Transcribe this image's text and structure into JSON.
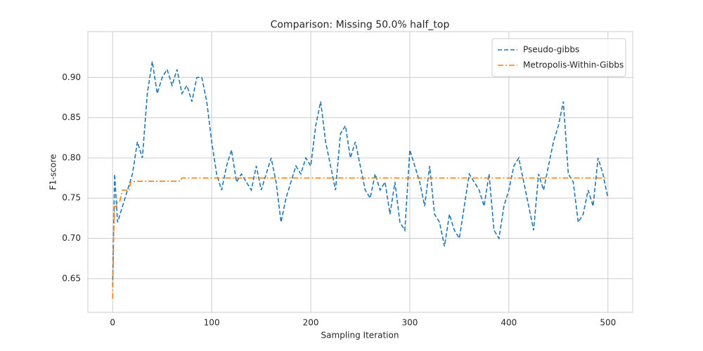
{
  "chart_data": {
    "type": "line",
    "title": "Comparison: Missing 50.0% half_top",
    "x_label": "Sampling Iteration",
    "y_label": "F1-score",
    "xlim": [
      -25,
      525
    ],
    "ylim": [
      0.608,
      0.957
    ],
    "xticks": [
      0,
      100,
      200,
      300,
      400,
      500
    ],
    "yticks": [
      0.65,
      {
        "value": 0.7,
        "label": "0.70"
      },
      0.75,
      {
        "value": 0.8,
        "label": "0.80"
      },
      0.85,
      {
        "value": 0.9,
        "label": "0.90"
      }
    ],
    "grid": true,
    "legend": "upper right",
    "series": [
      {
        "name": "Pseudo-gibbs",
        "color": "#1f77b4",
        "dash": "6,3",
        "x": [
          0,
          2,
          5,
          10,
          15,
          20,
          25,
          30,
          35,
          40,
          45,
          50,
          55,
          60,
          65,
          70,
          75,
          80,
          85,
          90,
          95,
          100,
          105,
          110,
          115,
          120,
          125,
          130,
          135,
          140,
          145,
          150,
          155,
          160,
          165,
          170,
          175,
          180,
          185,
          190,
          195,
          200,
          205,
          210,
          215,
          220,
          225,
          230,
          235,
          240,
          245,
          250,
          255,
          260,
          265,
          270,
          275,
          280,
          285,
          290,
          295,
          300,
          305,
          310,
          315,
          320,
          325,
          330,
          335,
          340,
          345,
          350,
          355,
          360,
          365,
          370,
          375,
          380,
          385,
          390,
          395,
          400,
          405,
          410,
          415,
          420,
          425,
          430,
          435,
          440,
          445,
          450,
          455,
          460,
          465,
          470,
          475,
          480,
          485,
          490,
          495,
          500
        ],
        "values": [
          0.64,
          0.78,
          0.72,
          0.74,
          0.76,
          0.78,
          0.82,
          0.8,
          0.88,
          0.92,
          0.88,
          0.9,
          0.91,
          0.89,
          0.91,
          0.88,
          0.89,
          0.87,
          0.9,
          0.9,
          0.87,
          0.82,
          0.78,
          0.76,
          0.79,
          0.81,
          0.77,
          0.78,
          0.77,
          0.76,
          0.79,
          0.76,
          0.78,
          0.8,
          0.77,
          0.72,
          0.75,
          0.77,
          0.79,
          0.78,
          0.8,
          0.79,
          0.84,
          0.87,
          0.82,
          0.79,
          0.76,
          0.83,
          0.84,
          0.8,
          0.82,
          0.79,
          0.76,
          0.75,
          0.78,
          0.76,
          0.77,
          0.73,
          0.77,
          0.72,
          0.71,
          0.81,
          0.79,
          0.77,
          0.74,
          0.79,
          0.73,
          0.72,
          0.69,
          0.73,
          0.71,
          0.7,
          0.74,
          0.78,
          0.77,
          0.76,
          0.74,
          0.78,
          0.71,
          0.7,
          0.74,
          0.76,
          0.79,
          0.8,
          0.77,
          0.74,
          0.71,
          0.78,
          0.76,
          0.79,
          0.82,
          0.84,
          0.87,
          0.78,
          0.77,
          0.72,
          0.73,
          0.76,
          0.74,
          0.8,
          0.78,
          0.75
        ]
      },
      {
        "name": "Metropolis-Within-Gibbs",
        "color": "#ff7f0e",
        "dash": "8,3,2,3",
        "x": [
          0,
          1,
          2,
          4,
          5,
          7,
          8,
          10,
          17,
          18,
          25,
          68,
          70,
          500
        ],
        "values": [
          0.625,
          0.7,
          0.74,
          0.74,
          0.745,
          0.745,
          0.75,
          0.76,
          0.76,
          0.77,
          0.771,
          0.771,
          0.775,
          0.775
        ]
      }
    ]
  }
}
